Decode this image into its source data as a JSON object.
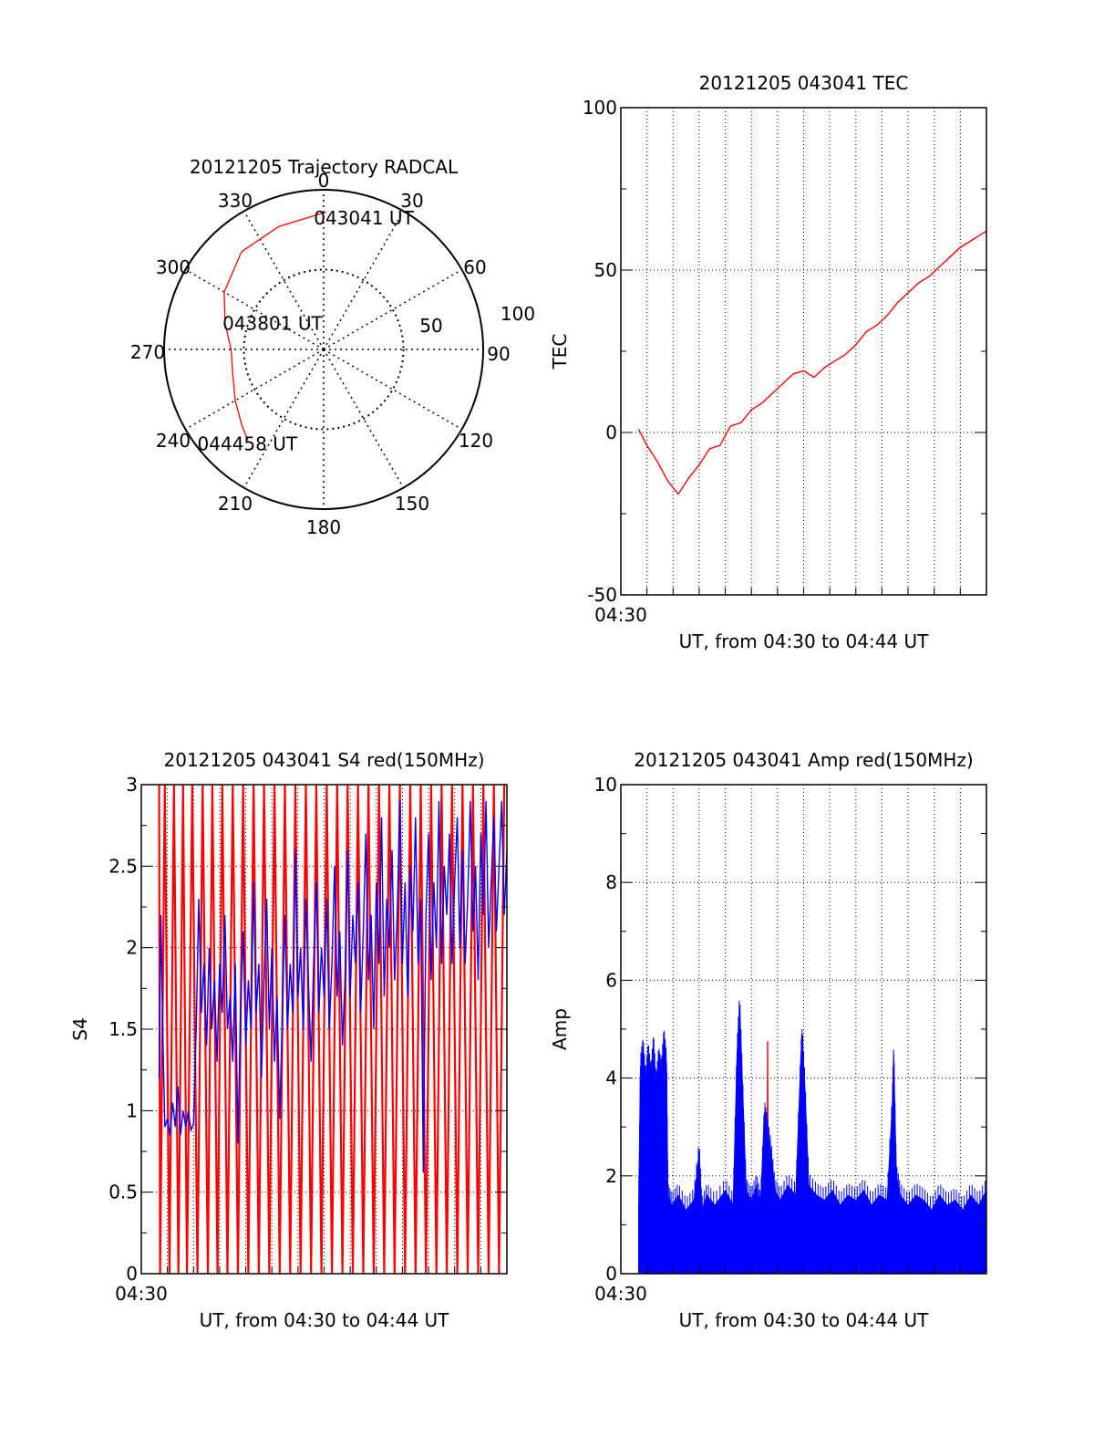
{
  "chart_data": [
    {
      "id": "trajectory",
      "type": "polar",
      "title": "20121205 Trajectory RADCAL",
      "angle_labels": [
        "0",
        "30",
        "60",
        "90",
        "120",
        "150",
        "180",
        "210",
        "240",
        "270",
        "300",
        "330"
      ],
      "radial_labels": [
        "50",
        "100"
      ],
      "rlim": [
        0,
        100
      ],
      "grid": true,
      "track_color": "#ff0000",
      "track": [
        {
          "az": 1,
          "r": 86
        },
        {
          "az": 340,
          "r": 82
        },
        {
          "az": 320,
          "r": 80
        },
        {
          "az": 300,
          "r": 72
        },
        {
          "az": 285,
          "r": 64
        },
        {
          "az": 270,
          "r": 58
        },
        {
          "az": 255,
          "r": 59
        },
        {
          "az": 240,
          "r": 64
        },
        {
          "az": 227,
          "r": 70
        },
        {
          "az": 220,
          "r": 74
        }
      ],
      "annotations": [
        {
          "text": "043041 UT",
          "az": 17,
          "r": 86
        },
        {
          "text": "043801 UT",
          "az": 297,
          "r": 36
        },
        {
          "text": "044458 UT",
          "az": 219,
          "r": 76
        }
      ]
    },
    {
      "id": "tec",
      "type": "line",
      "title": "20121205 043041 TEC",
      "xlabel": "UT, from 04:30 to 04:44 UT",
      "ylabel": "TEC",
      "xlim": [
        0,
        14
      ],
      "ylim": [
        -50,
        100
      ],
      "yticks": [
        -50,
        0,
        50,
        100
      ],
      "x_tick_label": "04:30",
      "x_unit": "minutes after 04:30 UT",
      "grid": true,
      "series": [
        {
          "color": "#ff0000",
          "x": [
            0.68,
            1.0,
            1.4,
            1.8,
            2.2,
            2.6,
            3.0,
            3.4,
            3.8,
            4.2,
            4.6,
            5.0,
            5.4,
            5.8,
            6.2,
            6.6,
            7.0,
            7.4,
            7.8,
            8.2,
            8.6,
            9.0,
            9.4,
            9.8,
            10.2,
            10.6,
            11.0,
            11.4,
            11.8,
            12.2,
            12.6,
            13.0,
            13.4,
            13.8,
            14.0
          ],
          "y": [
            1,
            -4,
            -9,
            -15,
            -19,
            -14,
            -10,
            -5,
            -4,
            2,
            3,
            7,
            9,
            12,
            15,
            18,
            19,
            17,
            20,
            22,
            24,
            27,
            31,
            33,
            36,
            40,
            43,
            46,
            48,
            51,
            54,
            57,
            59,
            61,
            62
          ]
        }
      ]
    },
    {
      "id": "s4",
      "type": "line",
      "title": "20121205 043041 S4 red(150MHz)",
      "xlabel": "UT, from 04:30 to 04:44 UT",
      "ylabel": "S4",
      "xlim": [
        0,
        14
      ],
      "ylim": [
        0,
        3
      ],
      "yticks": [
        0,
        0.5,
        1,
        1.5,
        2,
        2.5,
        3
      ],
      "x_tick_label": "04:30",
      "x_unit": "minutes after 04:30 UT",
      "grid": true,
      "series": [
        {
          "color": "#ff0000",
          "x": [
            0.68,
            0.72,
            0.9,
            1.08,
            1.25,
            1.42,
            1.6,
            1.75,
            1.95,
            2.15,
            2.35,
            2.55,
            2.72,
            2.92,
            3.1,
            3.3,
            3.5,
            3.7,
            3.9,
            4.1,
            4.3,
            4.5,
            4.7,
            4.9,
            5.1,
            5.3,
            5.5,
            5.7,
            5.9,
            6.1,
            6.3,
            6.5,
            6.7,
            6.9,
            7.1,
            7.3,
            7.5,
            7.7,
            7.9,
            8.1,
            8.3,
            8.5,
            8.7,
            8.9,
            9.1,
            9.3,
            9.5,
            9.7,
            9.9,
            10.1,
            10.3,
            10.5,
            10.7,
            10.9,
            11.1,
            11.3,
            11.5,
            11.7,
            11.9,
            12.1,
            12.3,
            12.5,
            12.7,
            12.9,
            13.1,
            13.3,
            13.5,
            13.7,
            13.9
          ],
          "y": [
            3,
            0,
            3,
            0,
            3,
            0,
            3,
            0,
            3,
            0,
            3,
            0,
            3,
            0,
            3,
            0,
            3,
            0,
            3,
            0,
            3,
            0,
            3,
            0,
            3,
            0,
            3,
            0,
            3,
            0,
            3,
            0,
            3,
            0,
            3,
            0,
            3,
            0,
            3,
            0,
            3,
            0,
            3,
            0,
            3,
            0,
            3,
            0,
            3,
            0,
            3,
            0,
            3,
            0,
            3,
            0,
            3,
            0,
            3,
            0,
            3,
            0,
            3,
            0,
            3,
            0,
            3,
            0,
            3
          ]
        },
        {
          "color": "#0000ff",
          "x": [
            0.68,
            0.75,
            0.82,
            0.9,
            1.0,
            1.1,
            1.2,
            1.3,
            1.4,
            1.5,
            1.6,
            1.7,
            1.8,
            1.9,
            2.0,
            2.1,
            2.2,
            2.3,
            2.4,
            2.5,
            2.6,
            2.7,
            2.8,
            2.9,
            3.0,
            3.1,
            3.2,
            3.3,
            3.4,
            3.5,
            3.6,
            3.7,
            3.8,
            3.9,
            4.0,
            4.1,
            4.2,
            4.3,
            4.4,
            4.5,
            4.6,
            4.7,
            4.8,
            4.9,
            5.0,
            5.1,
            5.2,
            5.3,
            5.4,
            5.5,
            5.6,
            5.7,
            5.8,
            5.9,
            6.0,
            6.1,
            6.2,
            6.3,
            6.4,
            6.5,
            6.6,
            6.7,
            6.8,
            6.9,
            7.0,
            7.1,
            7.2,
            7.3,
            7.4,
            7.5,
            7.6,
            7.7,
            7.8,
            7.9,
            8.0,
            8.1,
            8.2,
            8.3,
            8.4,
            8.5,
            8.6,
            8.7,
            8.8,
            8.9,
            9.0,
            9.1,
            9.2,
            9.3,
            9.4,
            9.5,
            9.6,
            9.7,
            9.8,
            9.9,
            10.0,
            10.1,
            10.2,
            10.3,
            10.4,
            10.5,
            10.6,
            10.7,
            10.8,
            10.9,
            11.0,
            11.1,
            11.2,
            11.3,
            11.4,
            11.5,
            11.6,
            11.7,
            11.8,
            11.9,
            12.0,
            12.1,
            12.2,
            12.3,
            12.4,
            12.5,
            12.6,
            12.7,
            12.8,
            12.9,
            13.0,
            13.1,
            13.2,
            13.3,
            13.4,
            13.5,
            13.6,
            13.7,
            13.8,
            13.9,
            14.0
          ],
          "y": [
            1.2,
            2.2,
            1.5,
            0.9,
            0.95,
            0.85,
            1.05,
            0.9,
            1.15,
            0.85,
            1.0,
            0.9,
            1.0,
            0.88,
            0.92,
            1.5,
            2.3,
            1.6,
            1.9,
            1.4,
            2.0,
            1.5,
            1.8,
            1.3,
            1.9,
            1.6,
            2.2,
            1.5,
            1.7,
            1.3,
            1.9,
            0.8,
            1.6,
            2.1,
            1.4,
            1.8,
            1.5,
            2.4,
            1.6,
            1.9,
            1.2,
            1.8,
            2.3,
            1.5,
            2.0,
            1.3,
            1.7,
            0.95,
            1.6,
            2.2,
            1.5,
            1.9,
            1.6,
            2.6,
            1.7,
            2.0,
            1.5,
            2.3,
            1.8,
            1.3,
            1.9,
            2.4,
            1.6,
            2.0,
            1.7,
            2.3,
            1.5,
            1.9,
            2.5,
            1.7,
            2.1,
            1.4,
            1.8,
            2.6,
            1.7,
            2.2,
            1.9,
            2.4,
            1.6,
            2.1,
            2.7,
            1.8,
            2.2,
            1.5,
            2.4,
            1.9,
            2.8,
            1.7,
            2.3,
            2.0,
            2.6,
            1.8,
            2.2,
            2.9,
            1.9,
            2.4,
            1.7,
            2.5,
            2.1,
            2.8,
            1.9,
            2.3,
            0.62,
            2.2,
            2.7,
            1.8,
            2.4,
            2.0,
            2.9,
            1.9,
            2.5,
            2.2,
            2.7,
            1.9,
            2.4,
            2.8,
            2.0,
            2.6,
            1.9,
            2.3,
            2.9,
            2.1,
            2.5,
            1.8,
            2.7,
            2.2,
            2.9,
            2.0,
            2.4,
            2.8,
            2.1,
            2.5,
            2.9,
            2.2,
            2.6
          ]
        }
      ]
    },
    {
      "id": "amp",
      "type": "line",
      "title": "20121205 043041 Amp red(150MHz)",
      "xlabel": "UT, from 04:30 to 04:44 UT",
      "ylabel": "Amp",
      "xlim": [
        0,
        14
      ],
      "ylim": [
        0,
        10
      ],
      "yticks": [
        0,
        2,
        4,
        6,
        8,
        10
      ],
      "x_tick_label": "04:30",
      "x_unit": "minutes after 04:30 UT",
      "grid": true,
      "fill_floor": 0.5,
      "series": [
        {
          "color": "#ff0000",
          "x": [
            5.6,
            5.62,
            5.64
          ],
          "y": [
            0.5,
            4.75,
            0.5
          ]
        },
        {
          "color": "#0000ff",
          "x": [
            0.68,
            0.75,
            0.85,
            0.95,
            1.05,
            1.15,
            1.25,
            1.35,
            1.45,
            1.55,
            1.65,
            1.75,
            1.8,
            1.95,
            2.2,
            2.5,
            2.8,
            3.0,
            3.1,
            3.3,
            3.6,
            4.0,
            4.3,
            4.45,
            4.55,
            4.65,
            4.8,
            5.0,
            5.2,
            5.35,
            5.5,
            5.6,
            5.75,
            5.9,
            6.1,
            6.4,
            6.7,
            6.9,
            6.95,
            7.05,
            7.2,
            7.5,
            7.8,
            8.1,
            8.4,
            8.7,
            9.0,
            9.3,
            9.6,
            9.9,
            10.2,
            10.4,
            10.45,
            10.55,
            10.7,
            11.0,
            11.3,
            11.6,
            11.9,
            12.2,
            12.5,
            12.8,
            13.1,
            13.4,
            13.7,
            14.0
          ],
          "y": [
            1.3,
            4.2,
            4.6,
            3.9,
            4.5,
            4.0,
            4.7,
            3.8,
            4.4,
            4.1,
            4.8,
            4.3,
            1.6,
            1.4,
            1.6,
            1.3,
            1.5,
            2.5,
            1.3,
            1.6,
            1.4,
            1.7,
            1.4,
            4.5,
            5.5,
            4.0,
            1.7,
            1.5,
            1.8,
            1.4,
            3.3,
            3.0,
            2.5,
            1.7,
            1.5,
            1.8,
            1.6,
            4.5,
            4.8,
            3.8,
            1.8,
            1.6,
            1.5,
            1.7,
            1.4,
            1.6,
            1.5,
            1.7,
            1.4,
            1.6,
            1.5,
            3.5,
            4.5,
            2.0,
            1.6,
            1.4,
            1.6,
            1.5,
            1.3,
            1.6,
            1.4,
            1.5,
            1.3,
            1.6,
            1.4,
            1.7
          ]
        }
      ]
    }
  ]
}
